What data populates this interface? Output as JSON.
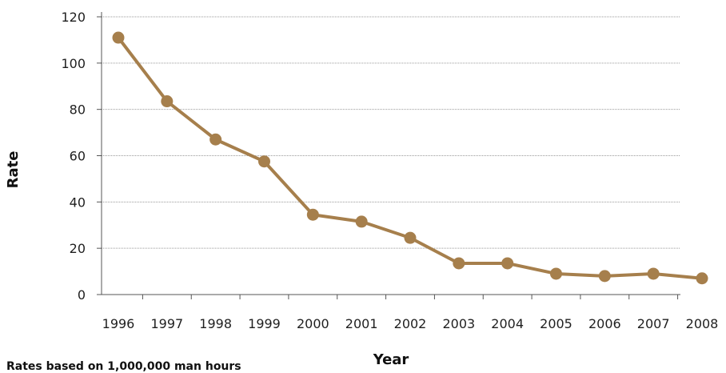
{
  "chart_data": {
    "type": "line",
    "x": [
      "1996",
      "1997",
      "1998",
      "1999",
      "2000",
      "2001",
      "2002",
      "2003",
      "2004",
      "2005",
      "2006",
      "2007",
      "2008"
    ],
    "series": [
      {
        "values": [
          111,
          83.5,
          67,
          57.5,
          34.5,
          31.5,
          24.5,
          13.5,
          13.5,
          9,
          8,
          9,
          7
        ]
      }
    ],
    "xlabel": "Year",
    "ylabel": "Rate",
    "ylim": [
      0,
      120
    ],
    "yticks": [
      "0",
      "20",
      "40",
      "60",
      "80",
      "100",
      "120"
    ],
    "grid": "horizontal dotted",
    "footnote": "Rates based on 1,000,000 man hours",
    "colors": {
      "line": "#a67f4c",
      "grid": "#9a9a9a",
      "axis": "#555555"
    }
  }
}
